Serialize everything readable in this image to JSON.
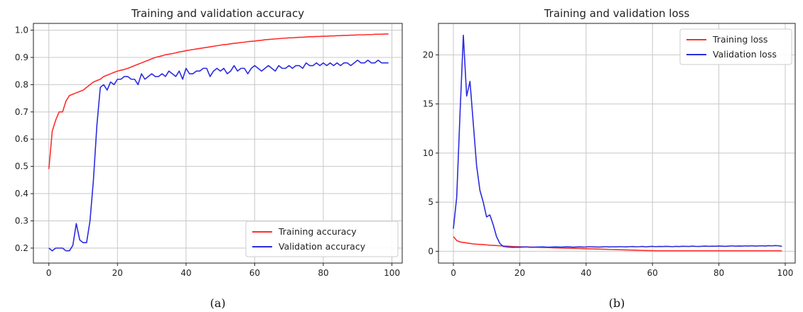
{
  "colors": {
    "training": "#ff2d2d",
    "validation": "#2c2ce0",
    "grid": "#c8c8c8",
    "axis": "#222222"
  },
  "chart_data": [
    {
      "id": "a",
      "type": "line",
      "title": "Training and validation accuracy",
      "caption": "(a)",
      "xlabel": "",
      "ylabel": "",
      "xlim": [
        -4.5,
        103
      ],
      "ylim": [
        0.145,
        1.025
      ],
      "xticks": [
        0,
        20,
        40,
        60,
        80,
        100
      ],
      "yticks": [
        0.2,
        0.3,
        0.4,
        0.5,
        0.6,
        0.7,
        0.8,
        0.9,
        1.0
      ],
      "ytick_labels": [
        "0.2",
        "0.3",
        "0.4",
        "0.5",
        "0.6",
        "0.7",
        "0.8",
        "0.9",
        "1.0"
      ],
      "grid": true,
      "legend_position": "lower-right",
      "series": [
        {
          "name": "Training accuracy",
          "color_key": "training",
          "values": [
            0.49,
            0.63,
            0.67,
            0.7,
            0.7,
            0.74,
            0.76,
            0.765,
            0.77,
            0.775,
            0.78,
            0.79,
            0.8,
            0.81,
            0.815,
            0.82,
            0.83,
            0.835,
            0.84,
            0.845,
            0.85,
            0.853,
            0.856,
            0.86,
            0.865,
            0.87,
            0.875,
            0.88,
            0.885,
            0.89,
            0.895,
            0.9,
            0.903,
            0.906,
            0.91,
            0.912,
            0.914,
            0.917,
            0.92,
            0.922,
            0.925,
            0.927,
            0.929,
            0.931,
            0.933,
            0.935,
            0.937,
            0.939,
            0.941,
            0.943,
            0.945,
            0.947,
            0.948,
            0.95,
            0.952,
            0.953,
            0.955,
            0.956,
            0.958,
            0.959,
            0.96,
            0.962,
            0.963,
            0.965,
            0.966,
            0.967,
            0.968,
            0.969,
            0.97,
            0.971,
            0.972,
            0.972,
            0.973,
            0.974,
            0.974,
            0.975,
            0.976,
            0.976,
            0.977,
            0.977,
            0.978,
            0.978,
            0.979,
            0.979,
            0.98,
            0.98,
            0.981,
            0.981,
            0.982,
            0.982,
            0.983,
            0.983,
            0.983,
            0.984,
            0.984,
            0.985,
            0.985,
            0.985,
            0.986,
            0.986
          ]
        },
        {
          "name": "Validation accuracy",
          "color_key": "validation",
          "values": [
            0.2,
            0.19,
            0.2,
            0.2,
            0.2,
            0.19,
            0.19,
            0.21,
            0.29,
            0.23,
            0.22,
            0.22,
            0.3,
            0.45,
            0.65,
            0.79,
            0.8,
            0.78,
            0.81,
            0.8,
            0.82,
            0.82,
            0.83,
            0.83,
            0.82,
            0.82,
            0.8,
            0.84,
            0.82,
            0.83,
            0.84,
            0.83,
            0.83,
            0.84,
            0.83,
            0.85,
            0.84,
            0.83,
            0.85,
            0.82,
            0.86,
            0.84,
            0.84,
            0.85,
            0.85,
            0.86,
            0.86,
            0.83,
            0.85,
            0.86,
            0.85,
            0.86,
            0.84,
            0.85,
            0.87,
            0.85,
            0.86,
            0.86,
            0.84,
            0.86,
            0.87,
            0.86,
            0.85,
            0.86,
            0.87,
            0.86,
            0.85,
            0.87,
            0.86,
            0.86,
            0.87,
            0.86,
            0.87,
            0.87,
            0.86,
            0.88,
            0.87,
            0.87,
            0.88,
            0.87,
            0.88,
            0.87,
            0.88,
            0.87,
            0.88,
            0.87,
            0.88,
            0.88,
            0.87,
            0.88,
            0.89,
            0.88,
            0.88,
            0.89,
            0.88,
            0.88,
            0.89,
            0.88,
            0.88,
            0.88
          ]
        }
      ]
    },
    {
      "id": "b",
      "type": "line",
      "title": "Training and validation loss",
      "caption": "(b)",
      "xlabel": "",
      "ylabel": "",
      "xlim": [
        -4.5,
        103
      ],
      "ylim": [
        -1.2,
        23.2
      ],
      "xticks": [
        0,
        20,
        40,
        60,
        80,
        100
      ],
      "yticks": [
        0,
        5,
        10,
        15,
        20
      ],
      "ytick_labels": [
        "0",
        "5",
        "10",
        "15",
        "20"
      ],
      "grid": true,
      "legend_position": "top-right",
      "series": [
        {
          "name": "Training loss",
          "color_key": "training",
          "values": [
            1.5,
            1.1,
            0.95,
            0.9,
            0.85,
            0.8,
            0.75,
            0.72,
            0.7,
            0.68,
            0.65,
            0.62,
            0.6,
            0.58,
            0.56,
            0.54,
            0.52,
            0.5,
            0.48,
            0.47,
            0.46,
            0.45,
            0.44,
            0.43,
            0.42,
            0.41,
            0.4,
            0.39,
            0.38,
            0.37,
            0.36,
            0.35,
            0.34,
            0.33,
            0.32,
            0.31,
            0.3,
            0.29,
            0.28,
            0.27,
            0.26,
            0.25,
            0.24,
            0.23,
            0.22,
            0.21,
            0.2,
            0.19,
            0.18,
            0.17,
            0.16,
            0.15,
            0.14,
            0.13,
            0.12,
            0.11,
            0.1,
            0.09,
            0.08,
            0.07,
            0.06,
            0.05,
            0.05,
            0.05,
            0.05,
            0.05,
            0.05,
            0.05,
            0.05,
            0.05,
            0.05,
            0.05,
            0.05,
            0.05,
            0.05,
            0.05,
            0.05,
            0.05,
            0.05,
            0.05,
            0.05,
            0.05,
            0.05,
            0.05,
            0.05,
            0.05,
            0.05,
            0.05,
            0.05,
            0.05,
            0.05,
            0.05,
            0.05,
            0.05,
            0.05,
            0.05,
            0.05,
            0.05,
            0.05,
            0.05
          ]
        },
        {
          "name": "Validation loss",
          "color_key": "validation",
          "values": [
            2.3,
            5.5,
            14.0,
            22.0,
            15.8,
            17.3,
            13.0,
            8.7,
            6.2,
            5.0,
            3.5,
            3.7,
            2.7,
            1.5,
            0.8,
            0.5,
            0.45,
            0.42,
            0.4,
            0.42,
            0.41,
            0.43,
            0.45,
            0.42,
            0.41,
            0.43,
            0.44,
            0.45,
            0.43,
            0.42,
            0.44,
            0.45,
            0.43,
            0.44,
            0.46,
            0.45,
            0.42,
            0.44,
            0.45,
            0.43,
            0.44,
            0.46,
            0.45,
            0.44,
            0.43,
            0.45,
            0.47,
            0.44,
            0.46,
            0.45,
            0.47,
            0.46,
            0.45,
            0.47,
            0.48,
            0.46,
            0.47,
            0.49,
            0.45,
            0.48,
            0.5,
            0.47,
            0.49,
            0.48,
            0.5,
            0.49,
            0.47,
            0.5,
            0.48,
            0.51,
            0.5,
            0.49,
            0.52,
            0.5,
            0.49,
            0.51,
            0.53,
            0.5,
            0.52,
            0.51,
            0.54,
            0.52,
            0.5,
            0.53,
            0.55,
            0.52,
            0.54,
            0.53,
            0.55,
            0.54,
            0.56,
            0.53,
            0.55,
            0.56,
            0.54,
            0.57,
            0.55,
            0.58,
            0.56,
            0.5
          ]
        }
      ]
    }
  ]
}
